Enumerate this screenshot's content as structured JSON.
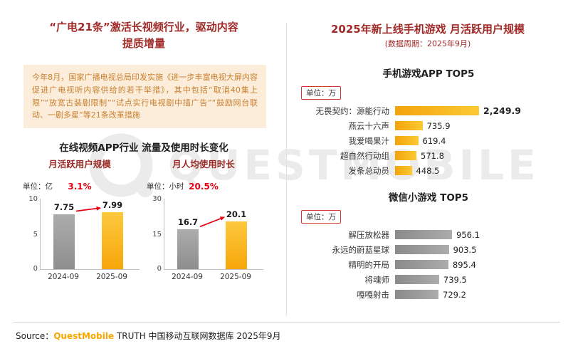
{
  "slide": {
    "left": {
      "title_line1": "“广电21条”激活长视频行业，驱动内容",
      "title_line2": "提质增量",
      "policy_box_text": "今年8月，国家广播电视总局印发实施《进一步丰富电视大屏内容 促进广电视听内容供给的若干举措》，其中包括“取消40集上限”“放宽古装剧限制”“试点实行电视剧中插广告”“鼓励网台联动、一剧多星”等21条改革措施",
      "section_title": "在线视频APP行业 流量及使用时长变化"
    },
    "right": {
      "title": "2025年新上线手机游戏 月活跃用户规模",
      "subtitle": "(数据周期：2025年9月)"
    },
    "footer": {
      "source_label": "Source：",
      "brand": "QuestMobile",
      "suffix": " TRUTH 中国移动互联网数据库 2025年9月"
    },
    "watermark_text": "QUESTMOBILE"
  },
  "colors": {
    "title_red": "#A02B28",
    "growth_red": "#E60012",
    "bar_yellow": "#FBB616",
    "bar_gray": "#9C9C9C",
    "policy_box_bg": "#FCEDDA",
    "policy_box_text": "#C9802F",
    "brand_orange": "#F7A600"
  },
  "chart_data": [
    {
      "type": "bar",
      "title": "月活跃用户规模",
      "unit": "单位：亿",
      "categories": [
        "2024-09",
        "2025-09"
      ],
      "values": [
        7.75,
        7.99
      ],
      "value_labels": [
        "7.75",
        "7.99"
      ],
      "growth_label": "3.1%",
      "ylim": [
        0,
        10
      ],
      "yticks": [
        "10",
        "5",
        "0"
      ],
      "series_colors": [
        "#9C9C9C",
        "#FBB616"
      ]
    },
    {
      "type": "bar",
      "title": "月人均使用时长",
      "unit": "单位：小时",
      "categories": [
        "2024-09",
        "2025-09"
      ],
      "values": [
        16.7,
        20.1
      ],
      "value_labels": [
        "16.7",
        "20.1"
      ],
      "growth_label": "20.5%",
      "ylim": [
        0,
        30
      ],
      "yticks": [
        "30",
        "15",
        "0"
      ],
      "series_colors": [
        "#9C9C9C",
        "#FBB616"
      ]
    },
    {
      "type": "bar-horizontal",
      "title": "手机游戏APP TOP5",
      "unit": "单位：万",
      "categories": [
        "无畏契约：源能行动",
        "燕云十六声",
        "我爱喝果汁",
        "超自然行动组",
        "发条总动员"
      ],
      "values": [
        2249.9,
        735.9,
        619.4,
        571.8,
        448.5
      ],
      "value_labels": [
        "2,249.9",
        "735.9",
        "619.4",
        "571.8",
        "448.5"
      ],
      "bar_color": "#FBB616"
    },
    {
      "type": "bar-horizontal",
      "title": "微信小游戏 TOP5",
      "unit": "单位：万",
      "categories": [
        "解压放松器",
        "永远的蔚蓝星球",
        "精明的开局",
        "将魂师",
        "嘎嘎射击"
      ],
      "values": [
        956.1,
        903.5,
        895.4,
        739.5,
        729.2
      ],
      "value_labels": [
        "956.1",
        "903.5",
        "895.4",
        "739.5",
        "729.2"
      ],
      "bar_color": "#9C9C9C"
    }
  ]
}
